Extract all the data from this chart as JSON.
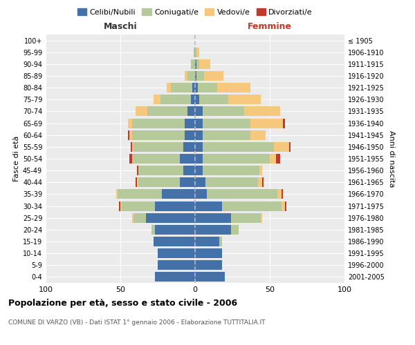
{
  "age_groups": [
    "0-4",
    "5-9",
    "10-14",
    "15-19",
    "20-24",
    "25-29",
    "30-34",
    "35-39",
    "40-44",
    "45-49",
    "50-54",
    "55-59",
    "60-64",
    "65-69",
    "70-74",
    "75-79",
    "80-84",
    "85-89",
    "90-94",
    "95-99",
    "100+"
  ],
  "birth_years": [
    "2001-2005",
    "1996-2000",
    "1991-1995",
    "1986-1990",
    "1981-1985",
    "1976-1980",
    "1971-1975",
    "1966-1970",
    "1961-1965",
    "1956-1960",
    "1951-1955",
    "1946-1950",
    "1941-1945",
    "1936-1940",
    "1931-1935",
    "1926-1930",
    "1921-1925",
    "1916-1920",
    "1911-1915",
    "1906-1910",
    "≤ 1905"
  ],
  "male": {
    "celibi": [
      27,
      25,
      25,
      28,
      27,
      33,
      27,
      22,
      10,
      8,
      10,
      8,
      7,
      7,
      5,
      3,
      2,
      0,
      0,
      0,
      0
    ],
    "coniugati": [
      0,
      0,
      0,
      0,
      2,
      8,
      22,
      30,
      28,
      30,
      32,
      33,
      35,
      35,
      27,
      20,
      14,
      5,
      3,
      1,
      0
    ],
    "vedovi": [
      0,
      0,
      0,
      0,
      0,
      1,
      1,
      1,
      1,
      0,
      0,
      1,
      2,
      3,
      8,
      5,
      3,
      2,
      0,
      0,
      0
    ],
    "divorziati": [
      0,
      0,
      0,
      0,
      0,
      0,
      1,
      0,
      1,
      1,
      2,
      1,
      1,
      0,
      0,
      0,
      0,
      0,
      0,
      0,
      0
    ]
  },
  "female": {
    "nubili": [
      20,
      18,
      18,
      16,
      24,
      24,
      18,
      8,
      7,
      5,
      5,
      5,
      5,
      5,
      5,
      3,
      2,
      1,
      1,
      0,
      0
    ],
    "coniugate": [
      0,
      0,
      0,
      2,
      5,
      20,
      40,
      47,
      35,
      38,
      45,
      48,
      32,
      32,
      28,
      19,
      13,
      5,
      2,
      1,
      0
    ],
    "vedove": [
      0,
      0,
      0,
      0,
      0,
      1,
      2,
      3,
      3,
      2,
      4,
      10,
      10,
      22,
      24,
      22,
      22,
      13,
      7,
      2,
      0
    ],
    "divorziate": [
      0,
      0,
      0,
      0,
      0,
      0,
      1,
      1,
      1,
      0,
      3,
      1,
      0,
      1,
      0,
      0,
      0,
      0,
      0,
      0,
      0
    ]
  },
  "colors": {
    "celibi": "#4472a8",
    "coniugati": "#b5c99a",
    "vedovi": "#f5c87e",
    "divorziati": "#c0392b"
  },
  "xlim": 100,
  "title": "Popolazione per età, sesso e stato civile - 2006",
  "subtitle": "COMUNE DI VARZO (VB) - Dati ISTAT 1° gennaio 2006 - Elaborazione TUTTITALIA.IT",
  "ylabel_left": "Fasce di età",
  "ylabel_right": "Anni di nascita",
  "xlabel_left": "Maschi",
  "xlabel_right": "Femmine",
  "legend_labels": [
    "Celibi/Nubili",
    "Coniugati/e",
    "Vedovi/e",
    "Divorziati/e"
  ],
  "background_color": "#ffffff",
  "plot_bg_color": "#ebebeb",
  "grid_color": "#ffffff"
}
